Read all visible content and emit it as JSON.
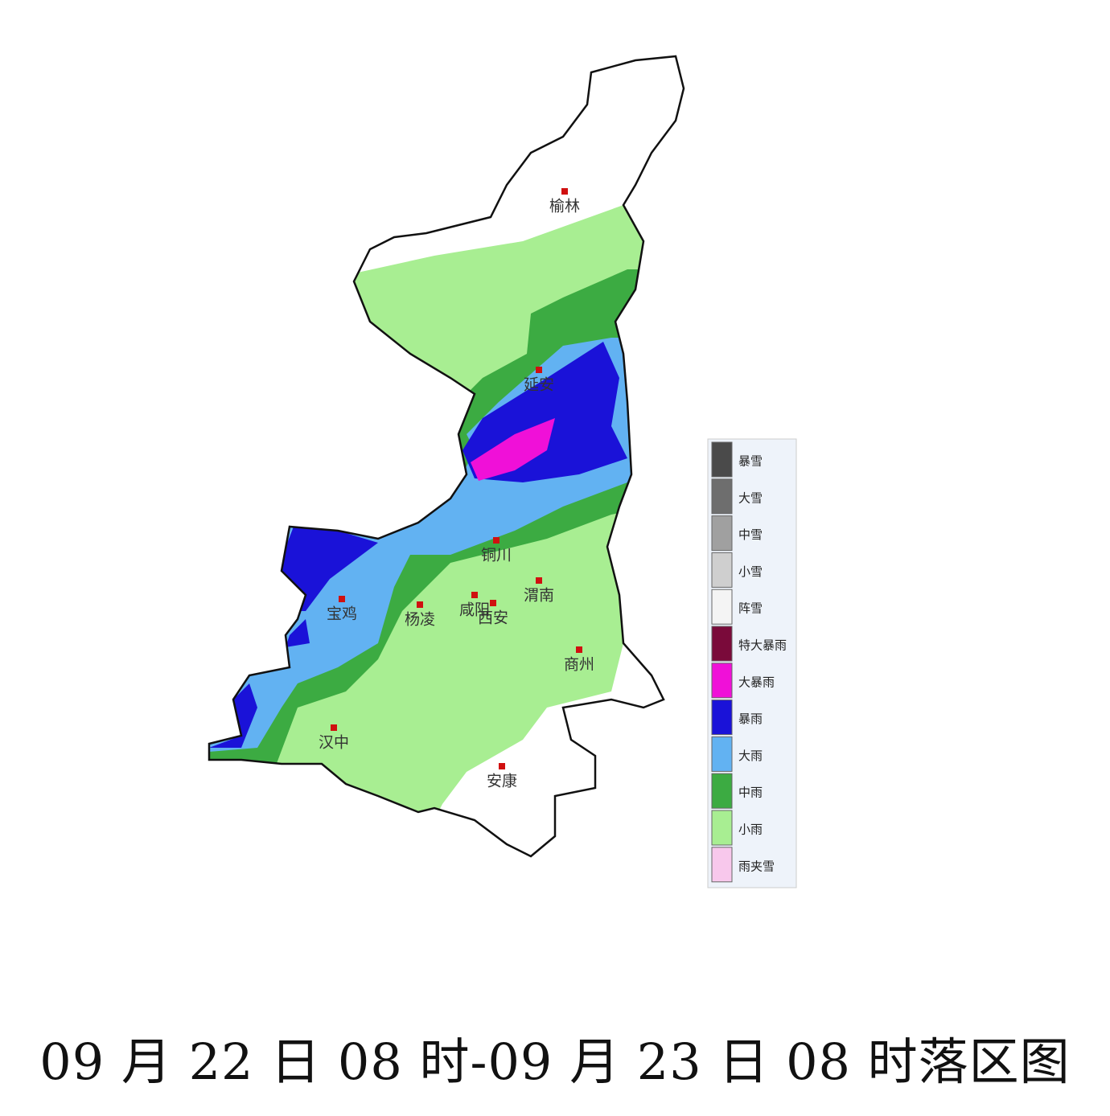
{
  "map": {
    "cities": [
      {
        "name": "榆林"
      },
      {
        "name": "延安"
      },
      {
        "name": "铜川"
      },
      {
        "name": "渭南"
      },
      {
        "name": "宝鸡"
      },
      {
        "name": "杨凌"
      },
      {
        "name": "咸阳"
      },
      {
        "name": "西安"
      },
      {
        "name": "商州"
      },
      {
        "name": "汉中"
      },
      {
        "name": "安康"
      }
    ],
    "legend": [
      {
        "label": "暴雪",
        "color": "#4a4a4a"
      },
      {
        "label": "大雪",
        "color": "#6e6e6e"
      },
      {
        "label": "中雪",
        "color": "#a0a0a0"
      },
      {
        "label": "小雪",
        "color": "#cfcfcf"
      },
      {
        "label": "阵雪",
        "color": "#f4f4f4"
      },
      {
        "label": "特大暴雨",
        "color": "#7a0a3a"
      },
      {
        "label": "大暴雨",
        "color": "#f010d8"
      },
      {
        "label": "暴雨",
        "color": "#1a12d8"
      },
      {
        "label": "大雨",
        "color": "#62b2f2"
      },
      {
        "label": "中雨",
        "color": "#3cab42"
      },
      {
        "label": "小雨",
        "color": "#a8ee92"
      },
      {
        "label": "雨夹雪",
        "color": "#f8c8ec"
      }
    ]
  },
  "caption": "09 月 22 日 08 时-09 月 23 日 08 时落区图"
}
